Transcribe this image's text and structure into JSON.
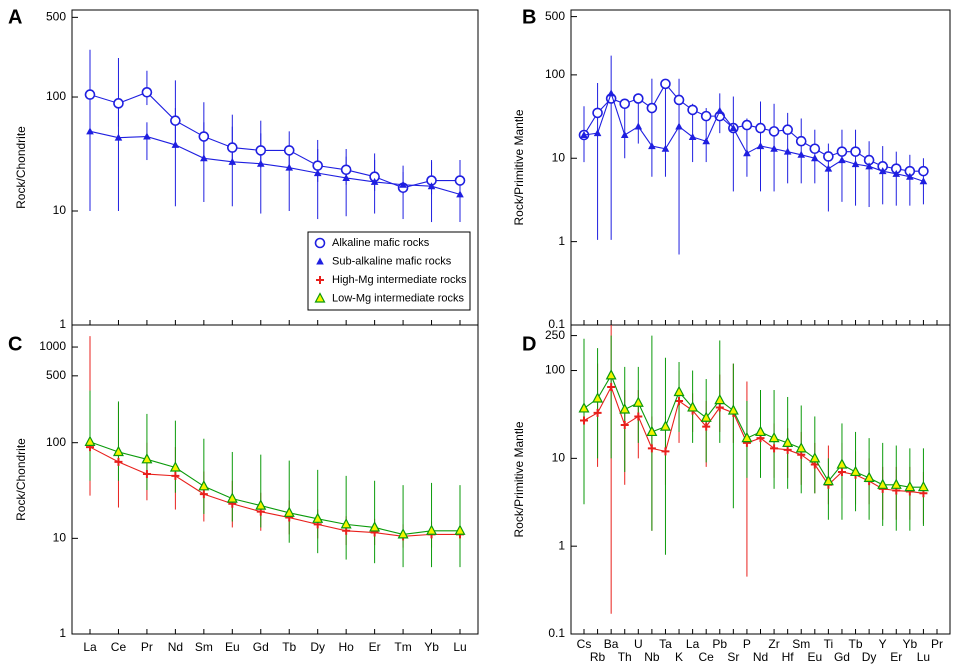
{
  "chart_data": [
    {
      "type": "line",
      "label": "A",
      "ylabel": "Rock/Chondrite",
      "log": true,
      "ylim": [
        1,
        580
      ],
      "yticks": [
        1,
        10,
        100,
        500
      ],
      "legend": "lower right",
      "series": [
        {
          "name": "Alkaline mafic rocks",
          "color": "#1f1fe0",
          "marker": "circle",
          "values": [
            105,
            88,
            110,
            62,
            45,
            36,
            34,
            34,
            25,
            23,
            20,
            16,
            18.5,
            18.5
          ],
          "lower": [
            60,
            55,
            85,
            40,
            30,
            25,
            24,
            24,
            18,
            17,
            15,
            14,
            14,
            14
          ],
          "upper": [
            260,
            220,
            170,
            140,
            90,
            70,
            62,
            50,
            42,
            35,
            32,
            22,
            28,
            28
          ]
        },
        {
          "name": "Sub-alkaline mafic rocks",
          "color": "#1f1fe0",
          "marker": "triangle-filled",
          "values": [
            50,
            44,
            45,
            38,
            29,
            27,
            26,
            24,
            21.5,
            19.5,
            18,
            17,
            16.5,
            14
          ],
          "lower": [
            10,
            10,
            28,
            11,
            12,
            11,
            9.5,
            10,
            8.5,
            9,
            9.5,
            8.5,
            8,
            8
          ],
          "upper": [
            100,
            95,
            60,
            80,
            60,
            55,
            48,
            38,
            35,
            30,
            28,
            25,
            27,
            25
          ]
        }
      ]
    },
    {
      "type": "line",
      "label": "B",
      "ylabel": "Rock/Primitive Mantle",
      "log": true,
      "ylim": [
        0.1,
        600
      ],
      "yticks": [
        0.1,
        1,
        10,
        100,
        500
      ],
      "series": [
        {
          "color": "#1f1fe0",
          "marker": "circle",
          "values": [
            19,
            35,
            52,
            45,
            52,
            40,
            78,
            50,
            38,
            32,
            32,
            23,
            25,
            23,
            21,
            22,
            16,
            13,
            10.5,
            12,
            12,
            9.5,
            8,
            7.5,
            7,
            7,
            null
          ]
        },
        {
          "color": "#1f1fe0",
          "marker": "triangle-filled",
          "values": [
            19,
            20,
            60,
            19,
            24,
            14,
            13,
            24,
            18,
            16,
            37,
            23,
            11.5,
            14,
            13,
            12,
            11,
            10,
            7.5,
            9.5,
            8.5,
            8,
            7,
            6.5,
            6,
            5.3,
            null
          ],
          "lower": [
            9,
            1.05,
            1.05,
            10,
            15,
            6,
            6,
            0.7,
            9,
            9,
            20,
            4,
            6,
            4,
            4,
            5,
            5,
            5,
            2.3,
            3,
            2.7,
            2.6,
            2.8,
            2.7,
            2.7,
            2.8,
            null
          ],
          "upper": [
            42,
            80,
            170,
            50,
            60,
            90,
            85,
            90,
            45,
            40,
            60,
            55,
            30,
            48,
            45,
            35,
            30,
            22,
            15,
            22,
            22,
            16,
            14,
            12,
            11,
            10,
            null
          ]
        }
      ]
    },
    {
      "type": "line",
      "label": "C",
      "ylabel": "Rock/Chondrite",
      "log": true,
      "ylim": [
        1,
        1700
      ],
      "yticks": [
        1,
        10,
        100,
        500,
        1000
      ],
      "categories": [
        "La",
        "Ce",
        "Pr",
        "Nd",
        "Sm",
        "Eu",
        "Gd",
        "Tb",
        "Dy",
        "Ho",
        "Er",
        "Tm",
        "Yb",
        "Lu"
      ],
      "series": [
        {
          "name": "High-Mg intermediate rocks",
          "color": "#e8201c",
          "marker": "plus",
          "values": [
            90,
            63,
            47,
            45,
            29,
            23,
            19,
            16.5,
            14,
            12,
            11.5,
            10.5,
            11,
            11
          ],
          "lower": [
            28,
            21,
            25,
            20,
            15,
            13,
            12,
            11,
            10,
            8.5,
            8.5,
            8,
            8,
            8
          ],
          "upper": [
            1300,
            260,
            100,
            90,
            50,
            40,
            30,
            25,
            20,
            17,
            16,
            14,
            15,
            15
          ]
        },
        {
          "name": "Low-Mg intermediate rocks",
          "color": "#0a9a0a",
          "marker": "triangle-open",
          "marker_fill": "#f4f400",
          "values": [
            102,
            80,
            67,
            55,
            35,
            26,
            22,
            18.5,
            16,
            14,
            13,
            11,
            12,
            12
          ],
          "lower": [
            40,
            40,
            32,
            30,
            18,
            15,
            13,
            9,
            7,
            6,
            5.5,
            5,
            5,
            5
          ],
          "upper": [
            350,
            270,
            200,
            170,
            110,
            80,
            75,
            65,
            52,
            45,
            40,
            36,
            38,
            36
          ]
        }
      ]
    },
    {
      "type": "line",
      "label": "D",
      "ylabel": "Rock/Primitive Mantle",
      "log": true,
      "ylim": [
        0.1,
        330
      ],
      "yticks": [
        0.1,
        1,
        10,
        100,
        250
      ],
      "categories": [
        "Cs",
        "Rb",
        "Ba",
        "Th",
        "U",
        "Nb",
        "Ta",
        "K",
        "La",
        "Ce",
        "Pb",
        "Sr",
        "P",
        "Nd",
        "Zr",
        "Hf",
        "Sm",
        "Eu",
        "Ti",
        "Gd",
        "Tb",
        "Dy",
        "Y",
        "Er",
        "Yb",
        "Lu",
        "Pr"
      ],
      "series": [
        {
          "color": "#e8201c",
          "marker": "plus",
          "values": [
            27,
            33,
            65,
            24,
            30,
            13,
            12,
            45,
            35,
            23,
            38,
            33,
            15,
            17,
            13,
            12.5,
            11,
            8.5,
            5,
            7,
            6.5,
            5.5,
            4.5,
            4.3,
            4.2,
            4.0,
            null
          ],
          "lower": [
            15,
            8,
            0.17,
            5,
            10,
            1.5,
            5,
            15,
            20,
            8,
            20,
            15,
            0.45,
            8,
            6,
            6,
            5,
            4,
            3,
            3.5,
            3,
            3,
            2,
            2,
            2,
            1.8,
            null
          ],
          "upper": [
            45,
            120,
            330,
            60,
            60,
            30,
            30,
            100,
            55,
            45,
            90,
            120,
            75,
            35,
            25,
            22,
            20,
            15,
            14,
            15,
            12,
            10,
            8,
            8,
            8,
            7,
            null
          ]
        },
        {
          "color": "#0a9a0a",
          "marker": "triangle-open",
          "marker_fill": "#f4f400",
          "values": [
            37,
            48,
            88,
            36,
            43,
            20,
            23,
            57,
            38,
            29,
            46,
            35,
            17,
            20,
            17,
            15,
            13,
            10,
            5.5,
            8.5,
            7,
            6,
            5,
            5,
            4.7,
            4.7,
            null
          ],
          "lower": [
            3,
            10,
            10,
            7,
            15,
            1.5,
            0.8,
            20,
            15,
            9,
            15,
            2.7,
            6,
            6,
            4.5,
            4.5,
            4,
            4,
            2,
            2,
            2.5,
            2,
            1.7,
            1.5,
            1.5,
            1.7,
            null
          ],
          "upper": [
            230,
            180,
            250,
            110,
            110,
            250,
            140,
            125,
            100,
            80,
            220,
            120,
            45,
            60,
            60,
            50,
            40,
            30,
            10,
            25,
            20,
            17,
            15,
            14,
            13,
            13,
            null
          ]
        }
      ]
    }
  ]
}
